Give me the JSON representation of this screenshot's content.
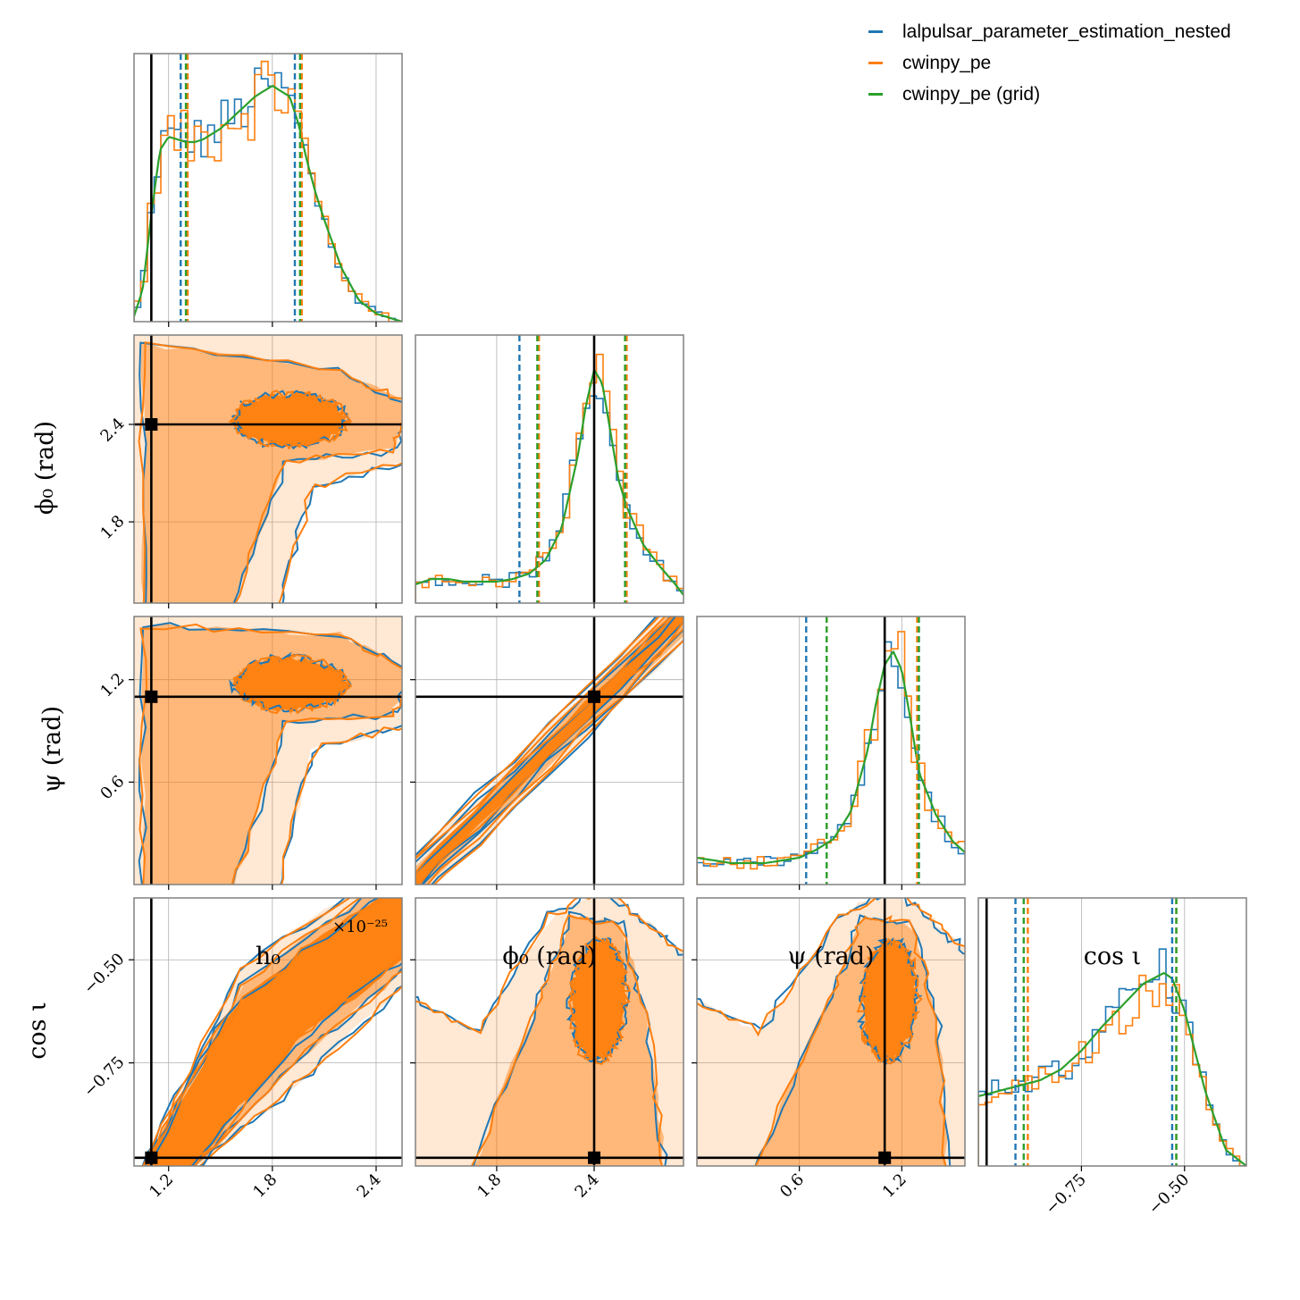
{
  "chart_data": {
    "type": "corner",
    "parameters": [
      {
        "key": "h0",
        "label": "h_0",
        "display": "h₀",
        "ticks": [
          1.2,
          1.8,
          2.4
        ],
        "tick_labels": [
          "1.2",
          "1.8",
          "2.4"
        ],
        "range": [
          1.0,
          2.55
        ],
        "multiplier": "×10⁻²⁵",
        "injection": 1.1
      },
      {
        "key": "phi0",
        "label": "ϕ₀ (rad)",
        "display": "ϕ₀ (rad)",
        "ticks": [
          1.8,
          2.4
        ],
        "tick_labels": [
          "1.8",
          "2.4"
        ],
        "range": [
          1.3,
          2.95
        ],
        "injection": 2.4
      },
      {
        "key": "psi",
        "label": "ψ (rad)",
        "display": "ψ (rad)",
        "ticks": [
          0.6,
          1.2
        ],
        "tick_labels": [
          "0.6",
          "1.2"
        ],
        "range": [
          0.0,
          1.57
        ],
        "injection": 1.1
      },
      {
        "key": "cosi",
        "label": "cos ι",
        "display": "cos ι",
        "ticks": [
          -0.75,
          -0.5
        ],
        "tick_labels": [
          "−0.75",
          "−0.50"
        ],
        "range": [
          -1.0,
          -0.35
        ],
        "injection": -0.98
      }
    ],
    "series": [
      {
        "name": "lalpulsar_parameter_estimation_nested",
        "color": "#1f77b4"
      },
      {
        "name": "cwinpy_pe",
        "color": "#ff7f0e"
      },
      {
        "name": "cwinpy_pe (grid)",
        "color": "#2ca02c"
      }
    ],
    "quantile_lines": {
      "h0": {
        "lalpulsar_parameter_estimation_nested": [
          1.27,
          1.93
        ],
        "cwinpy_pe": [
          1.31,
          1.97
        ],
        "cwinpy_pe (grid)": [
          1.3,
          1.96
        ]
      },
      "phi0": {
        "lalpulsar_parameter_estimation_nested": [
          1.94,
          2.6
        ],
        "cwinpy_pe": [
          2.06,
          2.6
        ],
        "cwinpy_pe (grid)": [
          2.05,
          2.59
        ]
      },
      "psi": {
        "lalpulsar_parameter_estimation_nested": [
          0.64,
          1.3
        ],
        "cwinpy_pe": [
          0.76,
          1.29
        ],
        "cwinpy_pe (grid)": [
          0.76,
          1.3
        ]
      },
      "cosi": {
        "lalpulsar_parameter_estimation_nested": [
          -0.91,
          -0.53
        ],
        "cwinpy_pe": [
          -0.88,
          -0.52
        ],
        "cwinpy_pe (grid)": [
          -0.89,
          -0.52
        ]
      }
    },
    "marginals": {
      "h0": {
        "x": [
          1.0,
          1.05,
          1.1,
          1.15,
          1.2,
          1.25,
          1.3,
          1.35,
          1.4,
          1.5,
          1.6,
          1.7,
          1.8,
          1.9,
          1.95,
          2.0,
          2.05,
          2.1,
          2.2,
          2.3,
          2.4,
          2.5,
          2.55
        ],
        "grid": [
          0.02,
          0.12,
          0.4,
          0.64,
          0.69,
          0.68,
          0.67,
          0.67,
          0.68,
          0.72,
          0.78,
          0.84,
          0.88,
          0.84,
          0.74,
          0.6,
          0.48,
          0.38,
          0.2,
          0.08,
          0.03,
          0.01,
          0.0
        ]
      },
      "phi0": {
        "x": [
          1.3,
          1.4,
          1.5,
          1.6,
          1.7,
          1.8,
          1.9,
          2.0,
          2.1,
          2.2,
          2.3,
          2.35,
          2.4,
          2.45,
          2.5,
          2.55,
          2.6,
          2.7,
          2.8,
          2.9,
          2.95
        ],
        "grid": [
          0.07,
          0.09,
          0.09,
          0.08,
          0.08,
          0.08,
          0.09,
          0.11,
          0.16,
          0.28,
          0.55,
          0.74,
          0.87,
          0.82,
          0.64,
          0.46,
          0.36,
          0.22,
          0.14,
          0.07,
          0.03
        ]
      },
      "psi": {
        "x": [
          0.0,
          0.1,
          0.2,
          0.3,
          0.4,
          0.5,
          0.6,
          0.7,
          0.8,
          0.9,
          1.0,
          1.05,
          1.1,
          1.15,
          1.2,
          1.25,
          1.3,
          1.4,
          1.5,
          1.57
        ],
        "grid": [
          0.1,
          0.09,
          0.08,
          0.08,
          0.08,
          0.09,
          0.1,
          0.13,
          0.17,
          0.27,
          0.5,
          0.68,
          0.82,
          0.87,
          0.8,
          0.62,
          0.42,
          0.26,
          0.16,
          0.12
        ]
      },
      "cosi": {
        "x": [
          -1.0,
          -0.95,
          -0.9,
          -0.85,
          -0.8,
          -0.75,
          -0.7,
          -0.65,
          -0.6,
          -0.55,
          -0.53,
          -0.5,
          -0.45,
          -0.4,
          -0.35
        ],
        "grid": [
          0.26,
          0.28,
          0.3,
          0.32,
          0.36,
          0.43,
          0.52,
          0.6,
          0.68,
          0.72,
          0.7,
          0.58,
          0.28,
          0.06,
          0.0
        ]
      }
    },
    "grid": true,
    "legend_position": "top-right"
  }
}
